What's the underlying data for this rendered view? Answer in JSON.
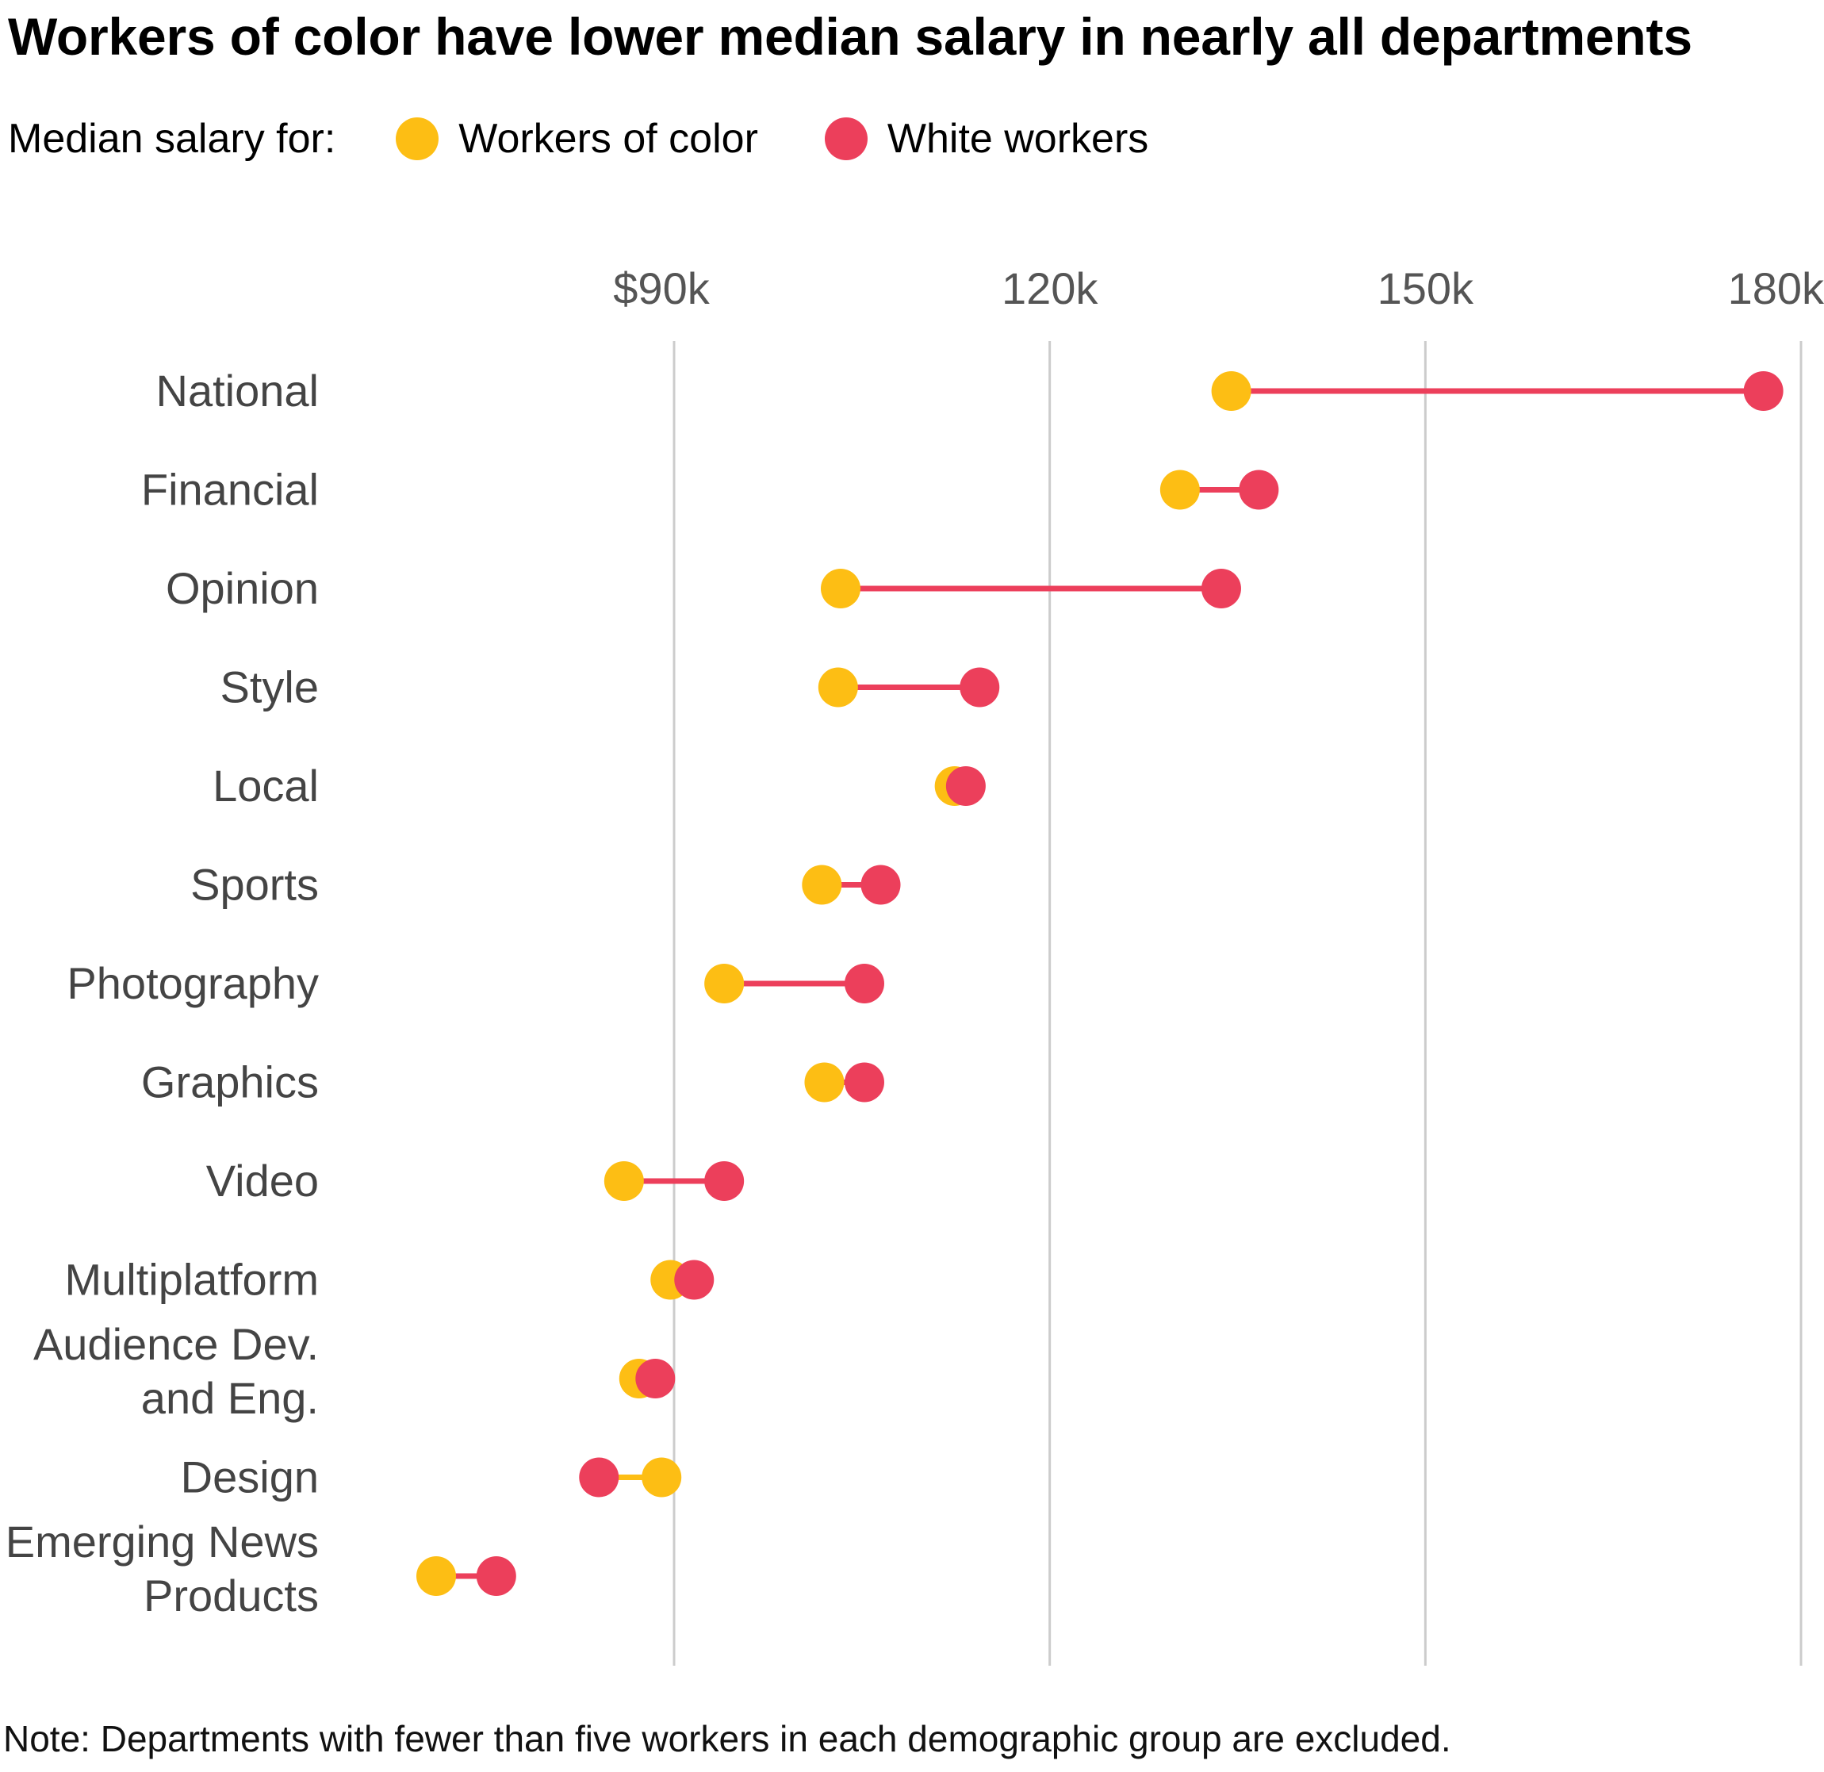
{
  "title": "Workers of color have lower median salary in nearly all departments",
  "legend": {
    "prefix": "Median salary for:",
    "items": [
      {
        "label": "Workers of color",
        "color": "#FDBE14"
      },
      {
        "label": "White workers",
        "color": "#EC3F5B"
      }
    ]
  },
  "note": "Note: Departments with fewer than five workers in each demographic group are excluded.",
  "chart_data": {
    "type": "dot-plot",
    "title": "Workers of color have lower median salary in nearly all departments",
    "x_ticks": [
      {
        "value": 90000,
        "label": "$90k"
      },
      {
        "value": 120000,
        "label": "120k"
      },
      {
        "value": 150000,
        "label": "150k"
      },
      {
        "value": 180000,
        "label": "180k"
      }
    ],
    "xlim": [
      70000,
      180000
    ],
    "grid": true,
    "legend_position": "top-left",
    "series": [
      {
        "name": "Workers of color",
        "color": "#FDBE14"
      },
      {
        "name": "White workers",
        "color": "#EC3F5B"
      }
    ],
    "categories": [
      {
        "label": [
          "National"
        ],
        "workers_of_color": 134500,
        "white_workers": 177000
      },
      {
        "label": [
          "Financial"
        ],
        "workers_of_color": 130400,
        "white_workers": 136700
      },
      {
        "label": [
          "Opinion"
        ],
        "workers_of_color": 103300,
        "white_workers": 133700
      },
      {
        "label": [
          "Style"
        ],
        "workers_of_color": 103100,
        "white_workers": 114400
      },
      {
        "label": [
          "Local"
        ],
        "workers_of_color": 112400,
        "white_workers": 113300
      },
      {
        "label": [
          "Sports"
        ],
        "workers_of_color": 101800,
        "white_workers": 106500
      },
      {
        "label": [
          "Photography"
        ],
        "workers_of_color": 94000,
        "white_workers": 105200
      },
      {
        "label": [
          "Graphics"
        ],
        "workers_of_color": 102000,
        "white_workers": 105200
      },
      {
        "label": [
          "Video"
        ],
        "workers_of_color": 86000,
        "white_workers": 94000
      },
      {
        "label": [
          "Multiplatform"
        ],
        "workers_of_color": 89700,
        "white_workers": 91600
      },
      {
        "label": [
          "Audience Dev.",
          "and Eng."
        ],
        "workers_of_color": 87200,
        "white_workers": 88500
      },
      {
        "label": [
          "Design"
        ],
        "workers_of_color": 89000,
        "white_workers": 84000
      },
      {
        "label": [
          "Emerging News",
          "Products"
        ],
        "workers_of_color": 71000,
        "white_workers": 75800
      }
    ]
  }
}
